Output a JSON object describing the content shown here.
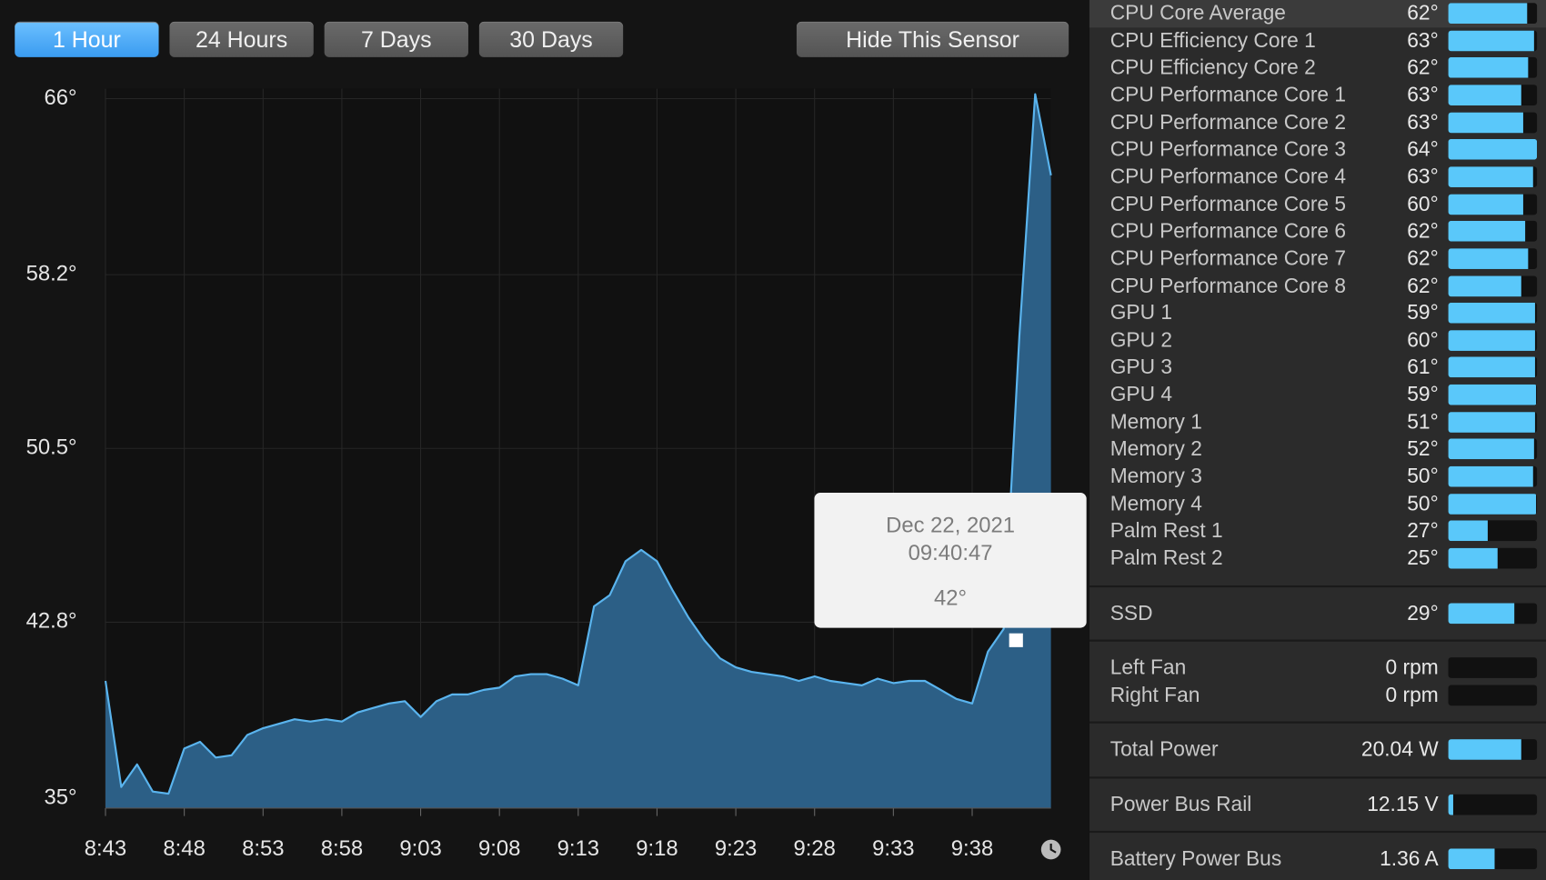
{
  "chart_data": {
    "type": "area",
    "x": [
      "8:43",
      "8:44",
      "8:45",
      "8:46",
      "8:47",
      "8:48",
      "8:49",
      "8:50",
      "8:51",
      "8:52",
      "8:53",
      "8:54",
      "8:55",
      "8:56",
      "8:57",
      "8:58",
      "8:59",
      "9:00",
      "9:01",
      "9:02",
      "9:03",
      "9:04",
      "9:05",
      "9:06",
      "9:07",
      "9:08",
      "9:09",
      "9:10",
      "9:11",
      "9:12",
      "9:13",
      "9:14",
      "9:15",
      "9:16",
      "9:17",
      "9:18",
      "9:19",
      "9:20",
      "9:21",
      "9:22",
      "9:23",
      "9:24",
      "9:25",
      "9:26",
      "9:27",
      "9:28",
      "9:29",
      "9:30",
      "9:31",
      "9:32",
      "9:33",
      "9:34",
      "9:35",
      "9:36",
      "9:37",
      "9:38",
      "9:39",
      "9:40",
      "9:41",
      "9:42",
      "9:43"
    ],
    "series": [
      {
        "color": "#5ab4ee",
        "fill": "#2c5f86",
        "values": [
          40.2,
          35.5,
          36.5,
          35.3,
          35.2,
          37.2,
          37.5,
          36.8,
          36.9,
          37.8,
          38.1,
          38.3,
          38.5,
          38.4,
          38.5,
          38.4,
          38.8,
          39.0,
          39.2,
          39.3,
          38.6,
          39.3,
          39.6,
          39.6,
          39.8,
          39.9,
          40.4,
          40.5,
          40.5,
          40.3,
          40.0,
          43.5,
          44.0,
          45.5,
          46.0,
          45.5,
          44.2,
          43.0,
          42.0,
          41.2,
          40.8,
          40.6,
          40.5,
          40.4,
          40.2,
          40.4,
          40.2,
          40.1,
          40.0,
          40.3,
          40.1,
          40.2,
          40.2,
          39.8,
          39.4,
          39.2,
          41.5,
          42.5,
          55.5,
          66.2,
          62.6
        ]
      }
    ],
    "ylim": [
      34.56,
      66.44
    ],
    "yticks": [
      {
        "value": 35,
        "label": "35°"
      },
      {
        "value": 42.8,
        "label": "42.8°"
      },
      {
        "value": 50.5,
        "label": "50.5°"
      },
      {
        "value": 58.2,
        "label": "58.2°"
      },
      {
        "value": 66,
        "label": "66°"
      }
    ],
    "xlim": [
      "8:43",
      "9:43"
    ],
    "xticks": [
      "8:43",
      "8:48",
      "8:53",
      "8:58",
      "9:03",
      "9:08",
      "9:13",
      "9:18",
      "9:23",
      "9:28",
      "9:33",
      "9:38"
    ],
    "grid": true,
    "tooltip": {
      "date": "Dec 22, 2021",
      "time": "09:40:47",
      "value": 42,
      "value_label": "42°"
    }
  },
  "toolbar": {
    "ranges": [
      "1 Hour",
      "24 Hours",
      "7 Days",
      "30 Days"
    ],
    "hide": "Hide This Sensor"
  },
  "sensors": {
    "groups": [
      [
        {
          "name": "CPU Core Average",
          "value": "62°",
          "level": 89
        },
        {
          "name": "CPU Efficiency Core 1",
          "value": "63°",
          "level": 97
        },
        {
          "name": "CPU Efficiency Core 2",
          "value": "62°",
          "level": 90
        },
        {
          "name": "CPU Performance Core 1",
          "value": "63°",
          "level": 82
        },
        {
          "name": "CPU Performance Core 2",
          "value": "63°",
          "level": 84
        },
        {
          "name": "CPU Performance Core 3",
          "value": "64°",
          "level": 100
        },
        {
          "name": "CPU Performance Core 4",
          "value": "63°",
          "level": 96
        },
        {
          "name": "CPU Performance Core 5",
          "value": "60°",
          "level": 84
        },
        {
          "name": "CPU Performance Core 6",
          "value": "62°",
          "level": 87
        },
        {
          "name": "CPU Performance Core 7",
          "value": "62°",
          "level": 90
        },
        {
          "name": "CPU Performance Core 8",
          "value": "62°",
          "level": 82
        },
        {
          "name": "GPU 1",
          "value": "59°",
          "level": 98
        },
        {
          "name": "GPU 2",
          "value": "60°",
          "level": 98
        },
        {
          "name": "GPU 3",
          "value": "61°",
          "level": 98
        },
        {
          "name": "GPU 4",
          "value": "59°",
          "level": 99
        },
        {
          "name": "Memory 1",
          "value": "51°",
          "level": 98
        },
        {
          "name": "Memory 2",
          "value": "52°",
          "level": 97
        },
        {
          "name": "Memory 3",
          "value": "50°",
          "level": 96
        },
        {
          "name": "Memory 4",
          "value": "50°",
          "level": 99
        },
        {
          "name": "Palm Rest 1",
          "value": "27°",
          "level": 44
        },
        {
          "name": "Palm Rest 2",
          "value": "25°",
          "level": 55
        }
      ],
      [
        {
          "name": "SSD",
          "value": "29°",
          "level": 74
        }
      ],
      [
        {
          "name": "Left Fan",
          "value": "0 rpm",
          "level": 0
        },
        {
          "name": "Right Fan",
          "value": "0 rpm",
          "level": 0
        }
      ],
      [
        {
          "name": "Total Power",
          "value": "20.04 W",
          "level": 82
        }
      ],
      [
        {
          "name": "Power Bus Rail",
          "value": "12.15 V",
          "level": 5
        }
      ],
      [
        {
          "name": "Battery Power Bus",
          "value": "1.36 A",
          "level": 52
        }
      ]
    ]
  }
}
